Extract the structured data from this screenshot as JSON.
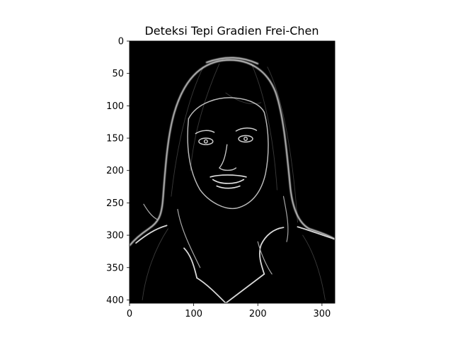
{
  "chart_data": {
    "type": "image",
    "title": "Deteksi Tepi Gradien Frei-Chen",
    "image_width": 320,
    "image_height": 405,
    "xlim": [
      0,
      320
    ],
    "ylim": [
      405,
      0
    ],
    "x_ticks": [
      0,
      100,
      200,
      300
    ],
    "y_ticks": [
      0,
      50,
      100,
      150,
      200,
      250,
      300,
      350,
      400
    ],
    "colormap": "gray",
    "background_color": "#000000",
    "edge_color": "#e8e8e8",
    "content": "edge-detected portrait of a woman with long hair"
  }
}
